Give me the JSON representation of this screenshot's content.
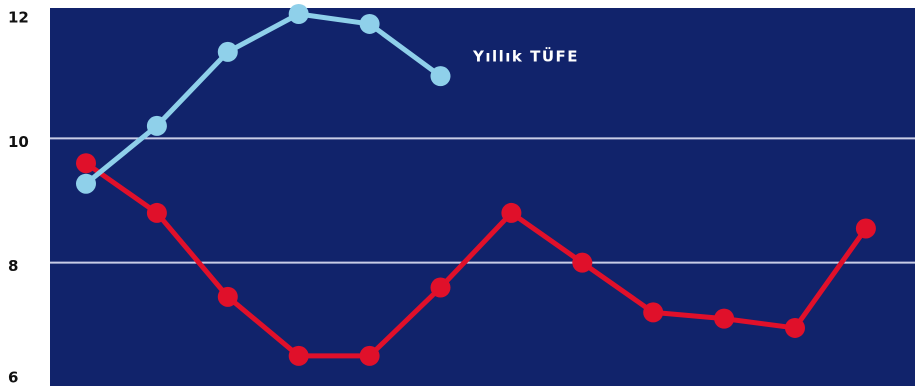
{
  "chart_data": {
    "type": "line",
    "annotation": "Yıllık TÜFE",
    "categories": [
      null,
      null,
      null,
      null,
      null,
      null,
      null,
      null,
      null,
      null,
      null,
      null
    ],
    "series": [
      {
        "color": "#e0102a",
        "values": [
          9.6,
          8.8,
          7.45,
          6.5,
          6.5,
          7.6,
          8.8,
          8.0,
          7.2,
          7.1,
          6.95,
          8.55
        ]
      },
      {
        "name": "Yıllık TÜFE",
        "color": "#8fd0ea",
        "values": [
          9.27,
          10.2,
          11.39,
          12,
          11.84,
          11.0,
          null,
          null,
          null,
          null,
          null,
          null
        ]
      }
    ],
    "ylim": [
      6,
      12
    ],
    "yticks": [
      6,
      8,
      10,
      12
    ],
    "grid": true
  }
}
